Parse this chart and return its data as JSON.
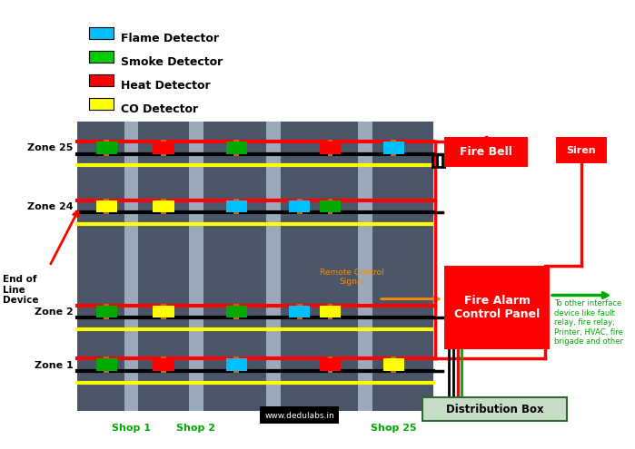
{
  "bg_color": "#ffffff",
  "grid_bg": "#4a5568",
  "legend_items": [
    {
      "label": "Flame Detector",
      "color": "#00bfff"
    },
    {
      "label": "Smoke Detector",
      "color": "#00cc00"
    },
    {
      "label": "Heat Detector",
      "color": "#ff0000"
    },
    {
      "label": "CO Detector",
      "color": "#ffff00"
    }
  ],
  "zones": [
    "Zone 25",
    "Zone 24",
    "Zone 2",
    "Zone 1"
  ],
  "shops": [
    "Shop 1",
    "Shop 2",
    "www.dedulabs.in",
    "Shop 25"
  ],
  "grid_color": "#4a5568",
  "col_color": "#9aaabb",
  "red": "#ff0000",
  "black": "#000000",
  "yellow": "#ffff00",
  "orange": "#ff8c00",
  "green": "#00aa00",
  "cyan": "#00bfff",
  "white": "#ffffff"
}
